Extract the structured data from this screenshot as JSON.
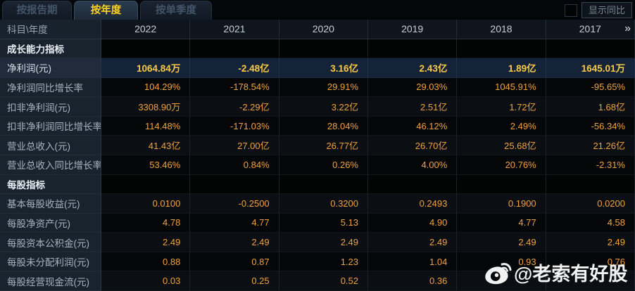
{
  "tabs": [
    {
      "label": "按报告期",
      "active": false
    },
    {
      "label": "按年度",
      "active": true
    },
    {
      "label": "按单季度",
      "active": false
    }
  ],
  "controls": {
    "show_yoy_label": "显示同比"
  },
  "colors": {
    "accent_yellow": "#ffd21e",
    "value_orange": "#f1a33e",
    "highlight_value": "#f9ca45",
    "highlight_row_bg": "#152338"
  },
  "watermark": {
    "icon": "weibo-icon",
    "text": "@老索有好股"
  },
  "table": {
    "corner_label": "科目\\年度",
    "years": [
      "2022",
      "2021",
      "2020",
      "2019",
      "2018",
      "2017"
    ],
    "more_icon": "»",
    "rows": [
      {
        "type": "section",
        "label": "成长能力指标",
        "values": [
          "",
          "",
          "",
          "",
          "",
          ""
        ]
      },
      {
        "type": "highlight",
        "label": "净利润(元)",
        "values": [
          "1064.84万",
          "-2.48亿",
          "3.16亿",
          "2.43亿",
          "1.89亿",
          "1645.01万"
        ]
      },
      {
        "type": "data",
        "label": "净利润同比增长率",
        "values": [
          "104.29%",
          "-178.54%",
          "29.91%",
          "29.03%",
          "1045.91%",
          "-95.65%"
        ]
      },
      {
        "type": "data",
        "label": "扣非净利润(元)",
        "values": [
          "3308.90万",
          "-2.29亿",
          "3.22亿",
          "2.51亿",
          "1.72亿",
          "1.68亿"
        ]
      },
      {
        "type": "data",
        "label": "扣非净利润同比增长率",
        "values": [
          "114.48%",
          "-171.03%",
          "28.04%",
          "46.12%",
          "2.49%",
          "-56.34%"
        ]
      },
      {
        "type": "data",
        "label": "营业总收入(元)",
        "values": [
          "41.43亿",
          "27.00亿",
          "26.77亿",
          "26.70亿",
          "25.68亿",
          "21.26亿"
        ]
      },
      {
        "type": "data",
        "label": "营业总收入同比增长率",
        "values": [
          "53.46%",
          "0.84%",
          "0.26%",
          "4.00%",
          "20.76%",
          "-2.31%"
        ]
      },
      {
        "type": "section",
        "label": "每股指标",
        "values": [
          "",
          "",
          "",
          "",
          "",
          ""
        ]
      },
      {
        "type": "data",
        "label": "基本每股收益(元)",
        "values": [
          "0.0100",
          "-0.2500",
          "0.3200",
          "0.2493",
          "0.1900",
          "0.0200"
        ]
      },
      {
        "type": "data",
        "label": "每股净资产(元)",
        "values": [
          "4.78",
          "4.77",
          "5.13",
          "4.90",
          "4.77",
          "4.58"
        ]
      },
      {
        "type": "data",
        "label": "每股资本公积金(元)",
        "values": [
          "2.49",
          "2.49",
          "2.49",
          "2.49",
          "2.49",
          "2.49"
        ]
      },
      {
        "type": "data",
        "label": "每股未分配利润(元)",
        "values": [
          "0.88",
          "0.87",
          "1.23",
          "1.04",
          "0.93",
          "0.76"
        ]
      },
      {
        "type": "data",
        "label": "每股经营现金流(元)",
        "values": [
          "0.03",
          "0.25",
          "0.52",
          "0.36",
          "",
          ""
        ]
      }
    ]
  }
}
